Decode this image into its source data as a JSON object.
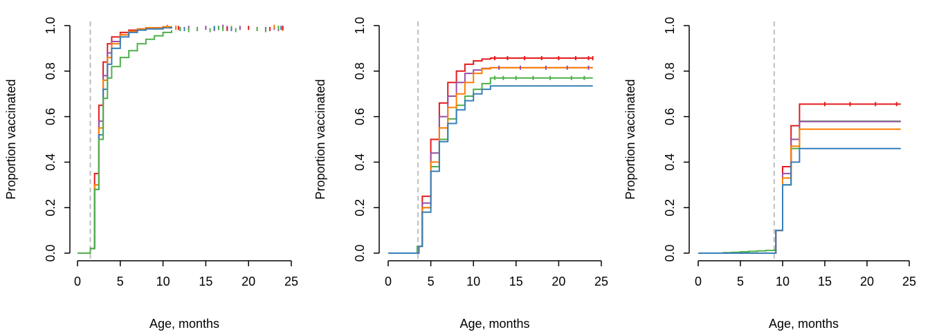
{
  "colors": {
    "red": "#E41A1C",
    "purple": "#984EA3",
    "orange": "#FF7F00",
    "green": "#4DAF4A",
    "blue": "#377EB8",
    "reference_line": "#BEBEBE",
    "axis": "#000000"
  },
  "chart_data": [
    {
      "type": "line",
      "step": true,
      "xlabel": "Age, months",
      "ylabel": "Proportion vaccinated",
      "xlim": [
        0,
        24.5
      ],
      "ylim": [
        0,
        1.0
      ],
      "xticks": [
        0,
        5,
        10,
        15,
        20,
        25
      ],
      "yticks": [
        0.0,
        0.2,
        0.4,
        0.6,
        0.8,
        1.0
      ],
      "xtick_labels": [
        "0",
        "5",
        "10",
        "15",
        "20",
        "25"
      ],
      "ytick_labels": [
        "0.0",
        "0.2",
        "0.4",
        "0.6",
        "0.8",
        "1.0"
      ],
      "reference_x": 1.5,
      "grid": false,
      "series": [
        {
          "color": "#E41A1C",
          "x": [
            0,
            1.4,
            1.5,
            2,
            2.5,
            3,
            3.5,
            4,
            5,
            6,
            7,
            8,
            10,
            11
          ],
          "y": [
            0,
            0,
            0.02,
            0.35,
            0.65,
            0.84,
            0.92,
            0.95,
            0.97,
            0.98,
            0.985,
            0.99,
            0.993,
            0.995
          ]
        },
        {
          "color": "#984EA3",
          "x": [
            0,
            1.4,
            1.5,
            2,
            2.5,
            3,
            3.5,
            4,
            5,
            6,
            7,
            8,
            10,
            11
          ],
          "y": [
            0,
            0,
            0.02,
            0.3,
            0.58,
            0.78,
            0.88,
            0.93,
            0.96,
            0.975,
            0.985,
            0.99,
            0.993,
            0.995
          ]
        },
        {
          "color": "#FF7F00",
          "x": [
            0,
            1.4,
            1.5,
            2,
            2.5,
            3,
            3.5,
            4,
            5,
            6,
            7,
            8,
            10,
            11
          ],
          "y": [
            0,
            0,
            0.02,
            0.3,
            0.55,
            0.76,
            0.86,
            0.92,
            0.96,
            0.975,
            0.985,
            0.99,
            0.995,
            0.995
          ]
        },
        {
          "color": "#377EB8",
          "x": [
            0,
            1.4,
            1.5,
            2,
            2.5,
            3,
            3.5,
            4,
            5,
            6,
            7,
            8,
            10,
            11
          ],
          "y": [
            0,
            0,
            0.02,
            0.28,
            0.52,
            0.72,
            0.83,
            0.9,
            0.95,
            0.97,
            0.98,
            0.985,
            0.99,
            0.995
          ]
        },
        {
          "color": "#4DAF4A",
          "x": [
            0,
            1.4,
            1.5,
            2,
            2.5,
            3,
            3.5,
            4,
            5,
            6,
            7,
            8,
            9,
            10,
            11
          ],
          "y": [
            0,
            0,
            0.02,
            0.28,
            0.5,
            0.68,
            0.77,
            0.82,
            0.86,
            0.89,
            0.92,
            0.94,
            0.955,
            0.97,
            0.98
          ]
        }
      ],
      "tail_markers": [
        {
          "color": "#984EA3",
          "x": [
            11.5,
            12,
            13,
            14,
            15,
            16,
            16.5,
            17,
            17.5,
            18,
            19,
            22,
            23,
            23.5,
            24
          ],
          "y": [
            0.99,
            0.985,
            0.99,
            0.985,
            0.99,
            0.985,
            0.99,
            0.995,
            0.99,
            0.985,
            0.99,
            0.985,
            0.99,
            0.985,
            0.99
          ]
        },
        {
          "color": "#FF7F00",
          "x": [
            10.5,
            11.5,
            12.5,
            18,
            21,
            23,
            23.5,
            24
          ],
          "y": [
            0.995,
            0.99,
            0.985,
            0.99,
            0.985,
            0.995,
            0.99,
            0.985
          ]
        },
        {
          "color": "#4DAF4A",
          "x": [
            12,
            13,
            14,
            15.5,
            16.5,
            17,
            18.5,
            21,
            22,
            23.5
          ],
          "y": [
            0.985,
            0.98,
            0.985,
            0.98,
            0.99,
            0.985,
            0.98,
            0.985,
            0.98,
            0.99
          ]
        },
        {
          "color": "#E41A1C",
          "x": [
            11.8,
            17.5,
            20,
            22.5,
            24
          ],
          "y": [
            0.99,
            0.985,
            0.99,
            0.985,
            0.99
          ]
        },
        {
          "color": "#377EB8",
          "x": [
            12.5,
            16,
            18,
            23.8
          ],
          "y": [
            0.985,
            0.99,
            0.985,
            0.99
          ]
        }
      ]
    },
    {
      "type": "line",
      "step": true,
      "xlabel": "Age, months",
      "ylabel": "Proportion vaccinated",
      "xlim": [
        0,
        24.5
      ],
      "ylim": [
        0,
        1.0
      ],
      "xticks": [
        0,
        5,
        10,
        15,
        20,
        25
      ],
      "yticks": [
        0.0,
        0.2,
        0.4,
        0.6,
        0.8,
        1.0
      ],
      "xtick_labels": [
        "0",
        "5",
        "10",
        "15",
        "20",
        "25"
      ],
      "ytick_labels": [
        "0.0",
        "0.2",
        "0.4",
        "0.6",
        "0.8",
        "1.0"
      ],
      "reference_x": 3.5,
      "grid": false,
      "series": [
        {
          "color": "#4DAF4A",
          "x": [
            0,
            3.2,
            3.4,
            4,
            5,
            6,
            7,
            8,
            9,
            10,
            11,
            12,
            24
          ],
          "y": [
            0,
            0,
            0.03,
            0.2,
            0.38,
            0.5,
            0.59,
            0.65,
            0.69,
            0.72,
            0.745,
            0.77,
            0.77
          ]
        },
        {
          "color": "#E41A1C",
          "x": [
            0,
            3.4,
            3.6,
            4,
            5,
            6,
            7,
            8,
            9,
            10,
            11,
            12,
            24
          ],
          "y": [
            0,
            0,
            0.03,
            0.25,
            0.5,
            0.66,
            0.75,
            0.8,
            0.83,
            0.845,
            0.853,
            0.857,
            0.857
          ]
        },
        {
          "color": "#984EA3",
          "x": [
            0,
            3.4,
            3.6,
            4,
            5,
            6,
            7,
            8,
            9,
            10,
            11,
            12,
            24
          ],
          "y": [
            0,
            0,
            0.03,
            0.22,
            0.44,
            0.6,
            0.69,
            0.75,
            0.79,
            0.805,
            0.812,
            0.815,
            0.815
          ]
        },
        {
          "color": "#FF7F00",
          "x": [
            0,
            3.4,
            3.6,
            4,
            5,
            6,
            7,
            8,
            9,
            10,
            11,
            12,
            24
          ],
          "y": [
            0,
            0,
            0.03,
            0.2,
            0.4,
            0.55,
            0.64,
            0.7,
            0.75,
            0.79,
            0.81,
            0.815,
            0.815
          ]
        },
        {
          "color": "#377EB8",
          "x": [
            0,
            3.4,
            3.6,
            4,
            5,
            6,
            7,
            8,
            9,
            10,
            11,
            12,
            24
          ],
          "y": [
            0,
            0,
            0.03,
            0.18,
            0.36,
            0.49,
            0.57,
            0.63,
            0.67,
            0.7,
            0.72,
            0.735,
            0.735
          ]
        }
      ],
      "tail_markers": [
        {
          "color": "#E41A1C",
          "x": [
            12.5,
            14,
            16,
            18,
            20,
            22,
            23.5,
            24
          ],
          "y": [
            0.857,
            0.857,
            0.857,
            0.857,
            0.857,
            0.857,
            0.857,
            0.857
          ]
        },
        {
          "color": "#4DAF4A",
          "x": [
            12.5,
            13.5,
            15,
            17,
            19,
            21.5,
            23
          ],
          "y": [
            0.77,
            0.77,
            0.77,
            0.77,
            0.77,
            0.77,
            0.77
          ]
        },
        {
          "color": "#984EA3",
          "x": [
            13,
            15.5,
            18.5,
            21,
            23.5
          ],
          "y": [
            0.815,
            0.815,
            0.815,
            0.815,
            0.815
          ]
        }
      ]
    },
    {
      "type": "line",
      "step": true,
      "xlabel": "Age, months",
      "ylabel": "Proportion vaccinated",
      "xlim": [
        0,
        24.5
      ],
      "ylim": [
        0,
        1.0
      ],
      "xticks": [
        0,
        5,
        10,
        15,
        20,
        25
      ],
      "yticks": [
        0.0,
        0.2,
        0.4,
        0.6,
        0.8,
        1.0
      ],
      "xtick_labels": [
        "0",
        "5",
        "10",
        "15",
        "20",
        "25"
      ],
      "ytick_labels": [
        "0.0",
        "0.2",
        "0.4",
        "0.6",
        "0.8",
        "1.0"
      ],
      "reference_x": 9,
      "grid": false,
      "series": [
        {
          "color": "#4DAF4A",
          "x": [
            0,
            2,
            3,
            4,
            5,
            6,
            7,
            8,
            9,
            9.2,
            10,
            11,
            12,
            24
          ],
          "y": [
            0,
            0,
            0.002,
            0.004,
            0.006,
            0.008,
            0.01,
            0.012,
            0.014,
            0.1,
            0.3,
            0.46,
            0.58,
            0.58
          ]
        },
        {
          "color": "#E41A1C",
          "x": [
            0,
            9,
            9.2,
            10,
            11,
            12,
            24
          ],
          "y": [
            0,
            0,
            0.1,
            0.38,
            0.56,
            0.655,
            0.655
          ]
        },
        {
          "color": "#984EA3",
          "x": [
            0,
            9,
            9.2,
            10,
            11,
            12,
            24
          ],
          "y": [
            0,
            0,
            0.1,
            0.35,
            0.5,
            0.578,
            0.578
          ]
        },
        {
          "color": "#FF7F00",
          "x": [
            0,
            9,
            9.2,
            10,
            11,
            12,
            24
          ],
          "y": [
            0,
            0,
            0.1,
            0.33,
            0.47,
            0.545,
            0.545
          ]
        },
        {
          "color": "#377EB8",
          "x": [
            0,
            9,
            9.2,
            10,
            11,
            12,
            24
          ],
          "y": [
            0,
            0,
            0.1,
            0.3,
            0.4,
            0.46,
            0.46
          ]
        }
      ],
      "tail_markers": [
        {
          "color": "#E41A1C",
          "x": [
            15,
            18,
            21,
            23.5
          ],
          "y": [
            0.655,
            0.655,
            0.655,
            0.655
          ]
        }
      ]
    }
  ]
}
